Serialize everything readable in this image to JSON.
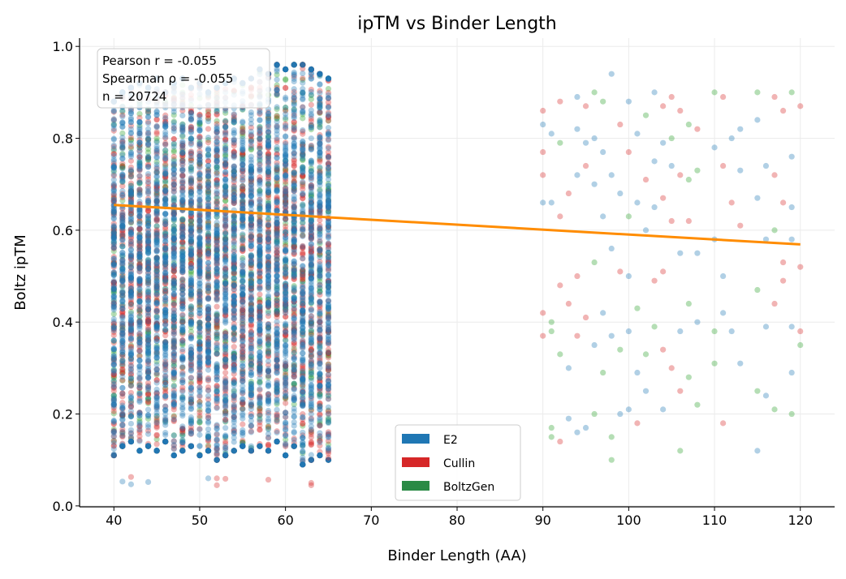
{
  "chart_data": {
    "type": "scatter",
    "title": "ipTM vs Binder Length",
    "xlabel": "Binder Length (AA)",
    "ylabel": "Boltz ipTM",
    "xlim": [
      36,
      124
    ],
    "ylim": [
      -0.002,
      1.018
    ],
    "xticks": [
      40,
      50,
      60,
      70,
      80,
      90,
      100,
      110,
      120
    ],
    "xtick_labels": [
      "40",
      "50",
      "60",
      "70",
      "80",
      "90",
      "100",
      "110",
      "120"
    ],
    "yticks": [
      0.0,
      0.2,
      0.4,
      0.6,
      0.8,
      1.0
    ],
    "ytick_labels": [
      "0.0",
      "0.2",
      "0.4",
      "0.6",
      "0.8",
      "1.0"
    ],
    "grid": true,
    "legend_position": "bottom-center",
    "series": [
      {
        "name": "E2",
        "color": "#1f77b4"
      },
      {
        "name": "Cullin",
        "color": "#d62728"
      },
      {
        "name": "BoltzGen",
        "color": "#2ca02c"
      }
    ],
    "dense_region": {
      "x_values": [
        40,
        41,
        42,
        43,
        44,
        45,
        46,
        47,
        48,
        49,
        50,
        51,
        52,
        53,
        54,
        55,
        56,
        57,
        58,
        59,
        60,
        61,
        62,
        63,
        64,
        65
      ],
      "y_min": [
        0.11,
        0.13,
        0.14,
        0.12,
        0.13,
        0.12,
        0.14,
        0.11,
        0.12,
        0.13,
        0.11,
        0.12,
        0.1,
        0.11,
        0.12,
        0.13,
        0.12,
        0.13,
        0.12,
        0.14,
        0.11,
        0.13,
        0.09,
        0.1,
        0.11,
        0.1
      ],
      "y_max": [
        0.88,
        0.9,
        0.91,
        0.92,
        0.91,
        0.93,
        0.9,
        0.92,
        0.93,
        0.91,
        0.92,
        0.9,
        0.91,
        0.92,
        0.93,
        0.92,
        0.93,
        0.95,
        0.94,
        0.96,
        0.95,
        0.96,
        0.96,
        0.95,
        0.94,
        0.93
      ],
      "outliers": [
        [
          41,
          0.053,
          "E2"
        ],
        [
          42,
          0.047,
          "E2"
        ],
        [
          42,
          0.063,
          "Cullin"
        ],
        [
          44,
          0.052,
          "E2"
        ],
        [
          51,
          0.06,
          "E2"
        ],
        [
          52,
          0.045,
          "Cullin"
        ],
        [
          52,
          0.06,
          "Cullin"
        ],
        [
          53,
          0.059,
          "Cullin"
        ],
        [
          58,
          0.057,
          "Cullin"
        ],
        [
          63,
          0.045,
          "Cullin"
        ],
        [
          63,
          0.05,
          "Cullin"
        ],
        [
          62,
          0.09,
          "E2"
        ],
        [
          65,
          0.105,
          "Cullin"
        ]
      ]
    },
    "sparse_points": [
      [
        90,
        0.86,
        "Cullin"
      ],
      [
        90,
        0.83,
        "E2"
      ],
      [
        90,
        0.77,
        "Cullin"
      ],
      [
        90,
        0.72,
        "Cullin"
      ],
      [
        90,
        0.66,
        "E2"
      ],
      [
        90,
        0.42,
        "Cullin"
      ],
      [
        90,
        0.37,
        "Cullin"
      ],
      [
        91,
        0.81,
        "E2"
      ],
      [
        91,
        0.66,
        "E2"
      ],
      [
        91,
        0.4,
        "BoltzGen"
      ],
      [
        91,
        0.38,
        "BoltzGen"
      ],
      [
        91,
        0.17,
        "BoltzGen"
      ],
      [
        91,
        0.15,
        "BoltzGen"
      ],
      [
        92,
        0.88,
        "Cullin"
      ],
      [
        92,
        0.79,
        "BoltzGen"
      ],
      [
        92,
        0.63,
        "Cullin"
      ],
      [
        92,
        0.48,
        "Cullin"
      ],
      [
        92,
        0.33,
        "BoltzGen"
      ],
      [
        92,
        0.14,
        "Cullin"
      ],
      [
        93,
        0.68,
        "Cullin"
      ],
      [
        93,
        0.44,
        "Cullin"
      ],
      [
        93,
        0.3,
        "E2"
      ],
      [
        93,
        0.19,
        "E2"
      ],
      [
        94,
        0.89,
        "E2"
      ],
      [
        94,
        0.82,
        "E2"
      ],
      [
        94,
        0.72,
        "E2"
      ],
      [
        94,
        0.5,
        "Cullin"
      ],
      [
        94,
        0.37,
        "Cullin"
      ],
      [
        94,
        0.16,
        "E2"
      ],
      [
        95,
        0.87,
        "Cullin"
      ],
      [
        95,
        0.79,
        "E2"
      ],
      [
        95,
        0.74,
        "Cullin"
      ],
      [
        95,
        0.41,
        "Cullin"
      ],
      [
        95,
        0.17,
        "E2"
      ],
      [
        96,
        0.9,
        "BoltzGen"
      ],
      [
        96,
        0.8,
        "E2"
      ],
      [
        96,
        0.7,
        "E2"
      ],
      [
        96,
        0.53,
        "BoltzGen"
      ],
      [
        96,
        0.35,
        "E2"
      ],
      [
        96,
        0.2,
        "BoltzGen"
      ],
      [
        97,
        0.88,
        "BoltzGen"
      ],
      [
        97,
        0.77,
        "E2"
      ],
      [
        97,
        0.63,
        "E2"
      ],
      [
        97,
        0.42,
        "E2"
      ],
      [
        97,
        0.29,
        "BoltzGen"
      ],
      [
        98,
        0.94,
        "E2"
      ],
      [
        98,
        0.72,
        "E2"
      ],
      [
        98,
        0.56,
        "E2"
      ],
      [
        98,
        0.37,
        "E2"
      ],
      [
        98,
        0.15,
        "BoltzGen"
      ],
      [
        98,
        0.1,
        "BoltzGen"
      ],
      [
        99,
        0.83,
        "Cullin"
      ],
      [
        99,
        0.68,
        "E2"
      ],
      [
        99,
        0.51,
        "Cullin"
      ],
      [
        99,
        0.34,
        "BoltzGen"
      ],
      [
        99,
        0.2,
        "E2"
      ],
      [
        100,
        0.88,
        "E2"
      ],
      [
        100,
        0.77,
        "Cullin"
      ],
      [
        100,
        0.63,
        "BoltzGen"
      ],
      [
        100,
        0.5,
        "E2"
      ],
      [
        100,
        0.38,
        "E2"
      ],
      [
        100,
        0.21,
        "E2"
      ],
      [
        101,
        0.81,
        "E2"
      ],
      [
        101,
        0.66,
        "E2"
      ],
      [
        101,
        0.43,
        "BoltzGen"
      ],
      [
        101,
        0.29,
        "E2"
      ],
      [
        101,
        0.18,
        "Cullin"
      ],
      [
        102,
        0.85,
        "BoltzGen"
      ],
      [
        102,
        0.71,
        "Cullin"
      ],
      [
        102,
        0.6,
        "E2"
      ],
      [
        102,
        0.33,
        "BoltzGen"
      ],
      [
        102,
        0.25,
        "E2"
      ],
      [
        103,
        0.9,
        "E2"
      ],
      [
        103,
        0.75,
        "E2"
      ],
      [
        103,
        0.65,
        "E2"
      ],
      [
        103,
        0.49,
        "Cullin"
      ],
      [
        103,
        0.39,
        "BoltzGen"
      ],
      [
        104,
        0.87,
        "Cullin"
      ],
      [
        104,
        0.79,
        "E2"
      ],
      [
        104,
        0.67,
        "Cullin"
      ],
      [
        104,
        0.51,
        "Cullin"
      ],
      [
        104,
        0.34,
        "Cullin"
      ],
      [
        104,
        0.21,
        "E2"
      ],
      [
        105,
        0.89,
        "Cullin"
      ],
      [
        105,
        0.8,
        "BoltzGen"
      ],
      [
        105,
        0.74,
        "E2"
      ],
      [
        105,
        0.62,
        "Cullin"
      ],
      [
        105,
        0.3,
        "Cullin"
      ],
      [
        106,
        0.86,
        "Cullin"
      ],
      [
        106,
        0.72,
        "Cullin"
      ],
      [
        106,
        0.55,
        "E2"
      ],
      [
        106,
        0.38,
        "E2"
      ],
      [
        106,
        0.25,
        "Cullin"
      ],
      [
        106,
        0.12,
        "BoltzGen"
      ],
      [
        107,
        0.83,
        "BoltzGen"
      ],
      [
        107,
        0.71,
        "BoltzGen"
      ],
      [
        107,
        0.62,
        "Cullin"
      ],
      [
        107,
        0.44,
        "BoltzGen"
      ],
      [
        107,
        0.28,
        "BoltzGen"
      ],
      [
        108,
        0.82,
        "Cullin"
      ],
      [
        108,
        0.73,
        "BoltzGen"
      ],
      [
        108,
        0.55,
        "E2"
      ],
      [
        108,
        0.4,
        "E2"
      ],
      [
        108,
        0.22,
        "BoltzGen"
      ],
      [
        110,
        0.9,
        "BoltzGen"
      ],
      [
        110,
        0.78,
        "E2"
      ],
      [
        110,
        0.58,
        "E2"
      ],
      [
        110,
        0.38,
        "BoltzGen"
      ],
      [
        110,
        0.31,
        "BoltzGen"
      ],
      [
        111,
        0.89,
        "Cullin"
      ],
      [
        111,
        0.74,
        "Cullin"
      ],
      [
        111,
        0.5,
        "E2"
      ],
      [
        111,
        0.42,
        "E2"
      ],
      [
        111,
        0.18,
        "Cullin"
      ],
      [
        112,
        0.8,
        "E2"
      ],
      [
        112,
        0.66,
        "Cullin"
      ],
      [
        112,
        0.38,
        "E2"
      ],
      [
        113,
        0.82,
        "E2"
      ],
      [
        113,
        0.73,
        "E2"
      ],
      [
        113,
        0.61,
        "Cullin"
      ],
      [
        113,
        0.31,
        "E2"
      ],
      [
        115,
        0.9,
        "BoltzGen"
      ],
      [
        115,
        0.84,
        "E2"
      ],
      [
        115,
        0.67,
        "E2"
      ],
      [
        115,
        0.47,
        "BoltzGen"
      ],
      [
        115,
        0.25,
        "BoltzGen"
      ],
      [
        115,
        0.12,
        "E2"
      ],
      [
        116,
        0.74,
        "E2"
      ],
      [
        116,
        0.58,
        "E2"
      ],
      [
        116,
        0.39,
        "E2"
      ],
      [
        116,
        0.24,
        "E2"
      ],
      [
        117,
        0.89,
        "Cullin"
      ],
      [
        117,
        0.72,
        "Cullin"
      ],
      [
        117,
        0.6,
        "BoltzGen"
      ],
      [
        117,
        0.44,
        "Cullin"
      ],
      [
        117,
        0.21,
        "BoltzGen"
      ],
      [
        118,
        0.86,
        "Cullin"
      ],
      [
        118,
        0.66,
        "Cullin"
      ],
      [
        118,
        0.53,
        "Cullin"
      ],
      [
        118,
        0.49,
        "Cullin"
      ],
      [
        119,
        0.9,
        "BoltzGen"
      ],
      [
        119,
        0.76,
        "E2"
      ],
      [
        119,
        0.65,
        "E2"
      ],
      [
        119,
        0.58,
        "E2"
      ],
      [
        119,
        0.39,
        "E2"
      ],
      [
        119,
        0.29,
        "E2"
      ],
      [
        119,
        0.2,
        "BoltzGen"
      ],
      [
        120,
        0.87,
        "Cullin"
      ],
      [
        120,
        0.52,
        "Cullin"
      ],
      [
        120,
        0.38,
        "Cullin"
      ],
      [
        120,
        0.35,
        "BoltzGen"
      ]
    ],
    "regression": {
      "color": "#ff8c00",
      "x": [
        40,
        120
      ],
      "y": [
        0.655,
        0.569
      ]
    },
    "annotation": {
      "line1": "Pearson r = -0.055",
      "line2": "Spearman ρ = -0.055",
      "line3": "n = 20724"
    }
  }
}
